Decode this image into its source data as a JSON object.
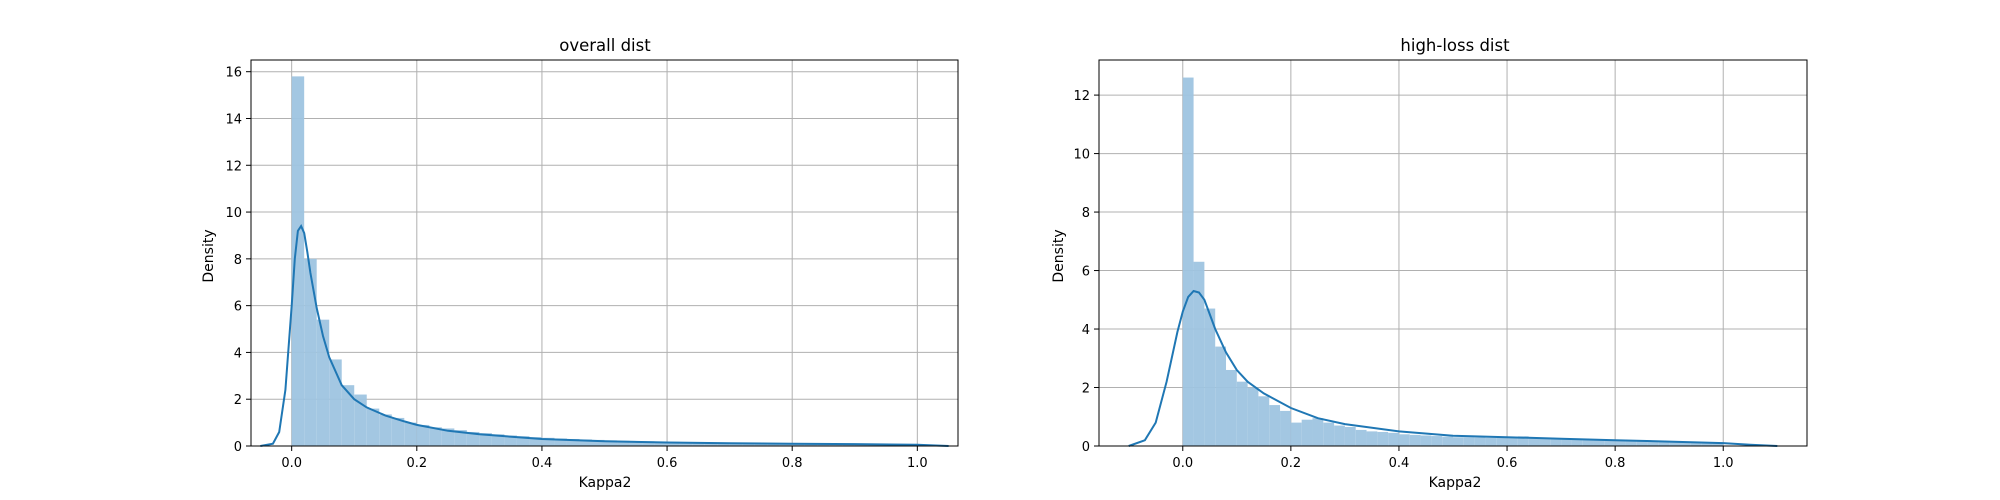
{
  "chart_data": [
    {
      "type": "bar",
      "title": "overall dist",
      "xlabel": "Kappa2",
      "ylabel": "Density",
      "xlim": [
        -0.065,
        1.065
      ],
      "ylim": [
        0,
        16.5
      ],
      "xticks": [
        "0.0",
        "0.2",
        "0.4",
        "0.6",
        "0.8",
        "1.0"
      ],
      "yticks": [
        "0",
        "2",
        "4",
        "6",
        "8",
        "10",
        "12",
        "14",
        "16"
      ],
      "grid": true,
      "hist_color": "#9ec4e0",
      "kde_color": "#1f77b4",
      "histogram": {
        "bin_start": 0.0,
        "bin_width": 0.02,
        "values": [
          15.8,
          8.0,
          5.4,
          3.7,
          2.6,
          2.2,
          1.6,
          1.35,
          1.2,
          1.0,
          0.9,
          0.8,
          0.75,
          0.68,
          0.6,
          0.55,
          0.5,
          0.45,
          0.42,
          0.38,
          0.35,
          0.32,
          0.3,
          0.28,
          0.26,
          0.24,
          0.22,
          0.21,
          0.2,
          0.19,
          0.18,
          0.17,
          0.16,
          0.15,
          0.14,
          0.13,
          0.13,
          0.12,
          0.12,
          0.11,
          0.11,
          0.1,
          0.1,
          0.1,
          0.09,
          0.09,
          0.09,
          0.08,
          0.08,
          0.08
        ]
      },
      "kde": {
        "x": [
          -0.05,
          -0.03,
          -0.02,
          -0.01,
          0.0,
          0.005,
          0.01,
          0.015,
          0.02,
          0.025,
          0.03,
          0.04,
          0.05,
          0.06,
          0.08,
          0.1,
          0.12,
          0.15,
          0.18,
          0.2,
          0.25,
          0.3,
          0.4,
          0.5,
          0.6,
          0.7,
          0.8,
          0.9,
          1.0,
          1.05
        ],
        "y": [
          0.0,
          0.1,
          0.6,
          2.4,
          6.0,
          8.0,
          9.2,
          9.4,
          9.1,
          8.3,
          7.4,
          5.9,
          4.7,
          3.8,
          2.6,
          2.0,
          1.65,
          1.3,
          1.05,
          0.9,
          0.65,
          0.5,
          0.3,
          0.2,
          0.15,
          0.12,
          0.1,
          0.08,
          0.05,
          0.0
        ]
      }
    },
    {
      "type": "bar",
      "title": "high-loss dist",
      "xlabel": "Kappa2",
      "ylabel": "Density",
      "xlim": [
        -0.155,
        1.155
      ],
      "ylim": [
        0,
        13.2
      ],
      "xticks": [
        "0.0",
        "0.2",
        "0.4",
        "0.6",
        "0.8",
        "1.0"
      ],
      "yticks": [
        "0",
        "2",
        "4",
        "6",
        "8",
        "10",
        "12"
      ],
      "grid": true,
      "hist_color": "#9ec4e0",
      "kde_color": "#1f77b4",
      "histogram": {
        "bin_start": 0.0,
        "bin_width": 0.02,
        "values": [
          12.6,
          6.3,
          4.7,
          3.4,
          2.6,
          2.2,
          2.0,
          1.7,
          1.4,
          1.2,
          0.8,
          0.9,
          0.95,
          0.8,
          0.7,
          0.65,
          0.55,
          0.5,
          0.48,
          0.45,
          0.4,
          0.38,
          0.36,
          0.34,
          0.32,
          0.3,
          0.3,
          0.29,
          0.28,
          0.28,
          0.27,
          0.33,
          0.27,
          0.26,
          0.25,
          0.24,
          0.23,
          0.22,
          0.22,
          0.21,
          0.2,
          0.2,
          0.19,
          0.18,
          0.17,
          0.16,
          0.15,
          0.14,
          0.13,
          0.12
        ]
      },
      "kde": {
        "x": [
          -0.1,
          -0.07,
          -0.05,
          -0.03,
          -0.01,
          0.0,
          0.01,
          0.02,
          0.03,
          0.04,
          0.05,
          0.06,
          0.08,
          0.1,
          0.12,
          0.15,
          0.2,
          0.25,
          0.3,
          0.4,
          0.5,
          0.6,
          0.7,
          0.8,
          0.9,
          1.0,
          1.05,
          1.1
        ],
        "y": [
          0.0,
          0.2,
          0.8,
          2.2,
          3.9,
          4.6,
          5.1,
          5.3,
          5.25,
          5.0,
          4.5,
          4.0,
          3.2,
          2.6,
          2.2,
          1.8,
          1.3,
          0.95,
          0.75,
          0.5,
          0.35,
          0.3,
          0.25,
          0.2,
          0.15,
          0.1,
          0.04,
          0.0
        ]
      }
    }
  ]
}
